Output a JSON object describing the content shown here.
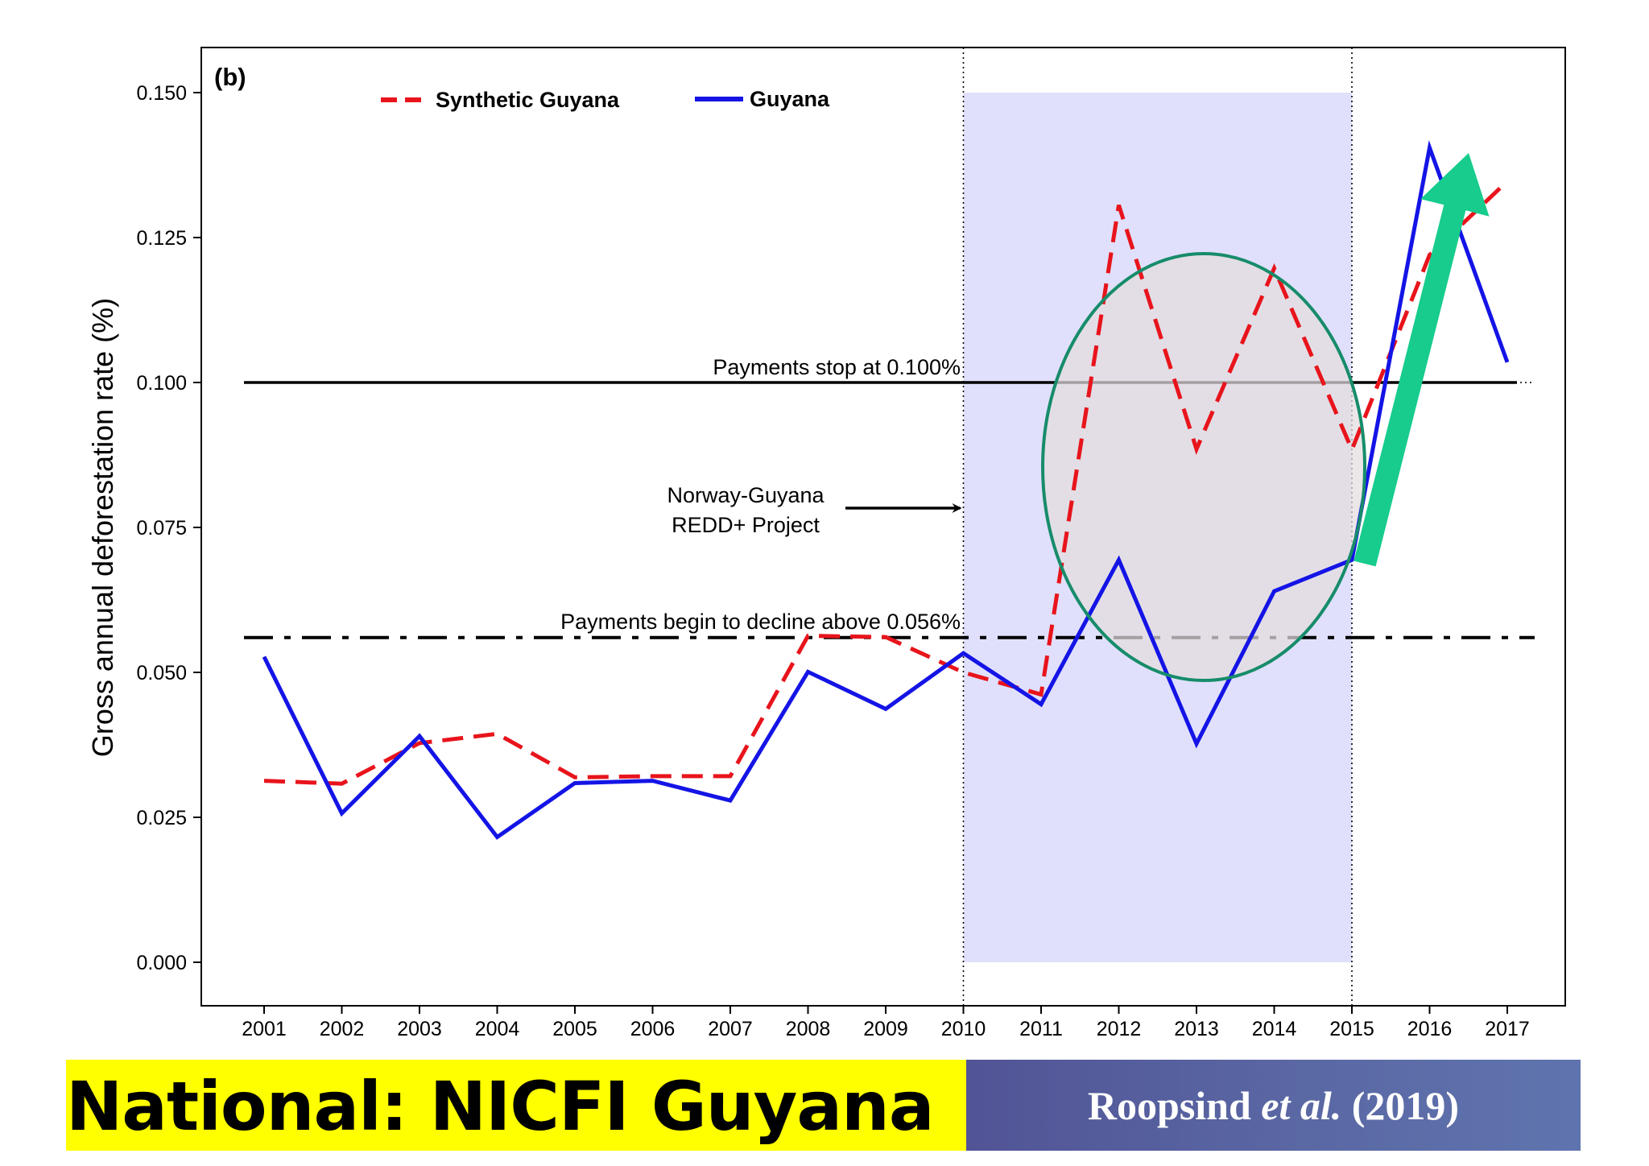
{
  "chart_data": {
    "type": "line",
    "panel_label": "(b)",
    "xlabel": "",
    "ylabel": "Gross annual deforestation rate (%)",
    "ylim": [
      0.0,
      0.15
    ],
    "yticks": [
      "0.000",
      "0.025",
      "0.050",
      "0.075",
      "0.100",
      "0.125",
      "0.150"
    ],
    "x": [
      "2001",
      "2002",
      "2003",
      "2004",
      "2005",
      "2006",
      "2007",
      "2008",
      "2009",
      "2010",
      "2011",
      "2012",
      "2013",
      "2014",
      "2015",
      "2016",
      "2017"
    ],
    "series": [
      {
        "name": "Synthetic Guyana",
        "style": "dashed",
        "color": "#e8141c",
        "values": [
          0.0313,
          0.0308,
          0.0378,
          0.0394,
          0.0319,
          0.0321,
          0.0321,
          0.0563,
          0.0561,
          0.05,
          0.0462,
          0.1306,
          0.0885,
          0.1197,
          0.0884,
          0.122,
          0.1347
        ]
      },
      {
        "name": "Guyana",
        "style": "solid",
        "color": "#1414e6",
        "values": [
          0.0527,
          0.0257,
          0.039,
          0.0216,
          0.0309,
          0.0313,
          0.0279,
          0.0501,
          0.0437,
          0.0533,
          0.0445,
          0.0694,
          0.0377,
          0.064,
          0.0694,
          0.1405,
          0.1035
        ]
      }
    ],
    "reference_lines": [
      {
        "y": 0.1,
        "style": "solid",
        "label": "Payments stop at 0.100%"
      },
      {
        "y": 0.056,
        "style": "dashdot",
        "label": "Payments begin to decline above 0.056%"
      }
    ],
    "shaded_region": {
      "x_start": "2010",
      "x_end": "2015",
      "color": "#e0e0fc"
    },
    "annotations": [
      {
        "text_lines": [
          "Norway-Guyana",
          "REDD+ Project"
        ],
        "arrow_to_x": "2010"
      }
    ],
    "overlays": {
      "ellipse_color": "#178c6a",
      "ellipse_fill": "#e3ddde",
      "arrow_color": "#17cc8c"
    },
    "legend": {
      "placement": "top-left"
    },
    "grid": false
  },
  "footer": {
    "title": "National: NICFI Guyana",
    "citation_author": "Roopsind",
    "citation_etal": "et al.",
    "citation_year": "(2019)",
    "title_bg": "#ffff00"
  }
}
